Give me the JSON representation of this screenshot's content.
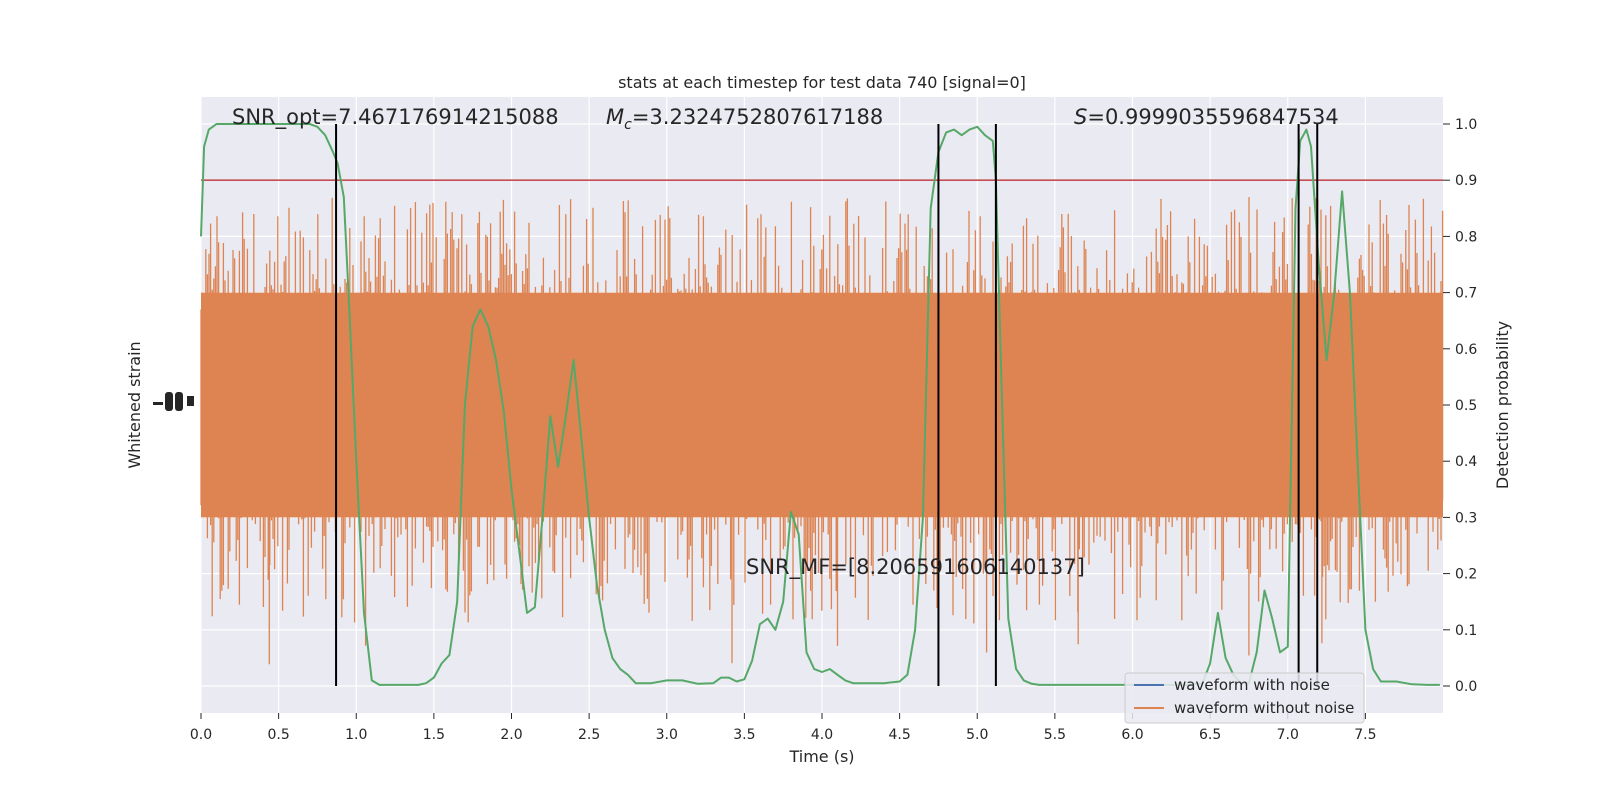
{
  "chart_data": {
    "type": "line",
    "title": "stats at each timestep for test data 740 [signal=0]",
    "xlabel": "Time (s)",
    "ylabel_left": "Whitened strain",
    "ylabel_right": "Detection probability",
    "xlim": [
      0.0,
      8.0
    ],
    "ylim_right": [
      0.0,
      1.0
    ],
    "x_ticks": [
      "0.0",
      "0.5",
      "1.0",
      "1.5",
      "2.0",
      "2.5",
      "3.0",
      "3.5",
      "4.0",
      "4.5",
      "5.0",
      "5.5",
      "6.0",
      "6.5",
      "7.0",
      "7.5"
    ],
    "y_ticks_right": [
      "0.0",
      "0.1",
      "0.2",
      "0.3",
      "0.4",
      "0.5",
      "0.6",
      "0.7",
      "0.8",
      "0.9",
      "1.0"
    ],
    "grid": true,
    "legend_position": "lower-right",
    "annotations": {
      "snr_opt": "SNR_opt=7.467176914215088",
      "mc_prefix": "M",
      "mc_sub": "c",
      "mc_value": "=3.2324752807617188",
      "s_prefix": "S",
      "s_value": "=0.9999035596847534",
      "snr_mf": "SNR_MF=[8.206591606140137]"
    },
    "threshold": 0.9,
    "detection_boundaries": [
      0.87,
      4.75,
      5.12,
      7.07,
      7.19
    ],
    "series": [
      {
        "name": "waveform with noise",
        "color": "#4c72b0",
        "visible_in_plot": false
      },
      {
        "name": "waveform without noise",
        "color": "#dd8452"
      },
      {
        "color": "#55a868",
        "x": [
          0.0,
          0.02,
          0.05,
          0.1,
          0.15,
          0.2,
          0.3,
          0.4,
          0.5,
          0.6,
          0.7,
          0.75,
          0.8,
          0.85,
          0.88,
          0.92,
          0.95,
          1.0,
          1.05,
          1.1,
          1.15,
          1.2,
          1.3,
          1.4,
          1.45,
          1.5,
          1.55,
          1.6,
          1.65,
          1.7,
          1.75,
          1.8,
          1.85,
          1.9,
          1.95,
          2.0,
          2.05,
          2.1,
          2.15,
          2.2,
          2.25,
          2.3,
          2.35,
          2.4,
          2.45,
          2.5,
          2.55,
          2.6,
          2.65,
          2.7,
          2.75,
          2.8,
          2.9,
          3.0,
          3.1,
          3.2,
          3.3,
          3.35,
          3.4,
          3.45,
          3.5,
          3.55,
          3.6,
          3.65,
          3.7,
          3.75,
          3.8,
          3.85,
          3.9,
          3.95,
          4.0,
          4.05,
          4.1,
          4.15,
          4.2,
          4.3,
          4.4,
          4.5,
          4.55,
          4.6,
          4.65,
          4.7,
          4.75,
          4.8,
          4.85,
          4.9,
          4.95,
          5.0,
          5.05,
          5.1,
          5.12,
          5.15,
          5.2,
          5.25,
          5.3,
          5.35,
          5.4,
          5.5,
          5.6,
          5.8,
          6.0,
          6.2,
          6.35,
          6.45,
          6.5,
          6.55,
          6.6,
          6.65,
          6.7,
          6.75,
          6.8,
          6.85,
          6.9,
          6.95,
          7.0,
          7.05,
          7.08,
          7.12,
          7.15,
          7.2,
          7.25,
          7.3,
          7.35,
          7.4,
          7.45,
          7.5,
          7.55,
          7.6,
          7.7,
          7.8,
          7.9,
          7.98
        ],
        "values": [
          0.8,
          0.96,
          0.99,
          1.0,
          1.0,
          1.0,
          1.0,
          1.0,
          1.0,
          1.0,
          1.0,
          0.995,
          0.98,
          0.95,
          0.93,
          0.87,
          0.7,
          0.4,
          0.13,
          0.01,
          0.002,
          0.002,
          0.002,
          0.002,
          0.005,
          0.015,
          0.04,
          0.055,
          0.15,
          0.5,
          0.64,
          0.67,
          0.64,
          0.58,
          0.49,
          0.35,
          0.24,
          0.13,
          0.14,
          0.3,
          0.48,
          0.39,
          0.48,
          0.58,
          0.44,
          0.3,
          0.18,
          0.1,
          0.05,
          0.03,
          0.02,
          0.005,
          0.005,
          0.01,
          0.01,
          0.004,
          0.005,
          0.015,
          0.015,
          0.008,
          0.012,
          0.045,
          0.11,
          0.12,
          0.1,
          0.15,
          0.31,
          0.27,
          0.06,
          0.03,
          0.025,
          0.03,
          0.02,
          0.01,
          0.005,
          0.005,
          0.005,
          0.008,
          0.02,
          0.1,
          0.3,
          0.85,
          0.95,
          0.985,
          0.99,
          0.98,
          0.99,
          0.995,
          0.98,
          0.97,
          0.9,
          0.6,
          0.12,
          0.03,
          0.01,
          0.004,
          0.002,
          0.002,
          0.002,
          0.002,
          0.002,
          0.002,
          0.002,
          0.005,
          0.04,
          0.13,
          0.05,
          0.02,
          0.005,
          0.005,
          0.06,
          0.17,
          0.12,
          0.06,
          0.07,
          0.85,
          0.97,
          0.99,
          0.96,
          0.75,
          0.58,
          0.7,
          0.88,
          0.7,
          0.4,
          0.1,
          0.03,
          0.008,
          0.008,
          0.003,
          0.002,
          0.002
        ]
      }
    ],
    "legend": [
      {
        "label": "waveform with noise",
        "color": "#4c72b0"
      },
      {
        "label": "waveform without noise",
        "color": "#dd8452"
      }
    ],
    "colors": {
      "plot_background": "#eaeaf2",
      "grid": "#ffffff",
      "noise_fill": "#dd8452",
      "probability_line": "#55a868",
      "threshold_line": "#c44e52",
      "boundary_lines": "#000000"
    }
  }
}
